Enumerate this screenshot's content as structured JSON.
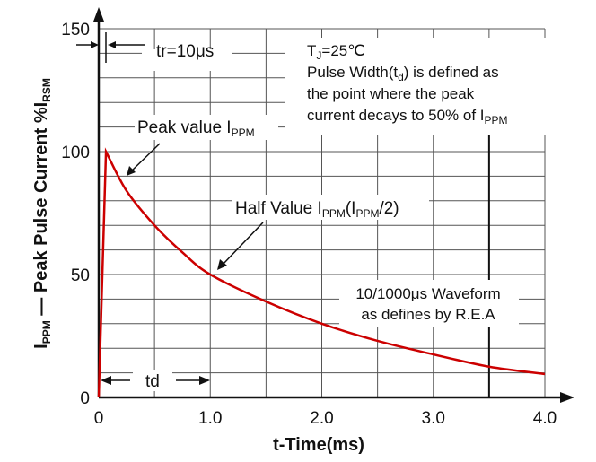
{
  "chart_data": {
    "type": "line",
    "title": "",
    "xlabel": "t-Time(ms)",
    "ylabel": {
      "main": "I",
      "sub1": "PPM",
      "mid": " — Peak Pulse Current  %I",
      "sub2": "RSM"
    },
    "xlim": [
      0,
      4.0
    ],
    "ylim": [
      0,
      150
    ],
    "x_ticks": [
      "0",
      "1.0",
      "2.0",
      "3.0",
      "4.0"
    ],
    "y_ticks": [
      "0",
      "50",
      "100",
      "150"
    ],
    "grid": true,
    "series": [
      {
        "color": "#cc0000",
        "x": [
          0,
          0.065,
          0.25,
          0.5,
          0.75,
          1.0,
          1.5,
          2.0,
          2.5,
          3.0,
          3.5,
          4.0
        ],
        "y": [
          0,
          100,
          84,
          70,
          59,
          50,
          39,
          30,
          23,
          17.5,
          12.5,
          9.5
        ]
      }
    ],
    "annotations": {
      "tr": "tr=10μs",
      "peak": {
        "text": "Peak value I",
        "sub": "PPM"
      },
      "half": {
        "text": "Half Value I",
        "sub": "PPM",
        "text2": "(I",
        "sub2": "PPM",
        "text3": "/2)"
      },
      "td": "td",
      "note": {
        "line1a": "T",
        "line1sub": "J",
        "line1b": "=25℃",
        "line2a": "Pulse Width(t",
        "line2sub": "d",
        "line2b": ") is defined as",
        "line3": "the point where the peak",
        "line4a": "current decays to 50% of I",
        "line4sub": "PPM"
      },
      "waveform": [
        "10/1000μs Waveform",
        "as defines by R.E.A"
      ],
      "td_marker_x": 3.5
    }
  }
}
